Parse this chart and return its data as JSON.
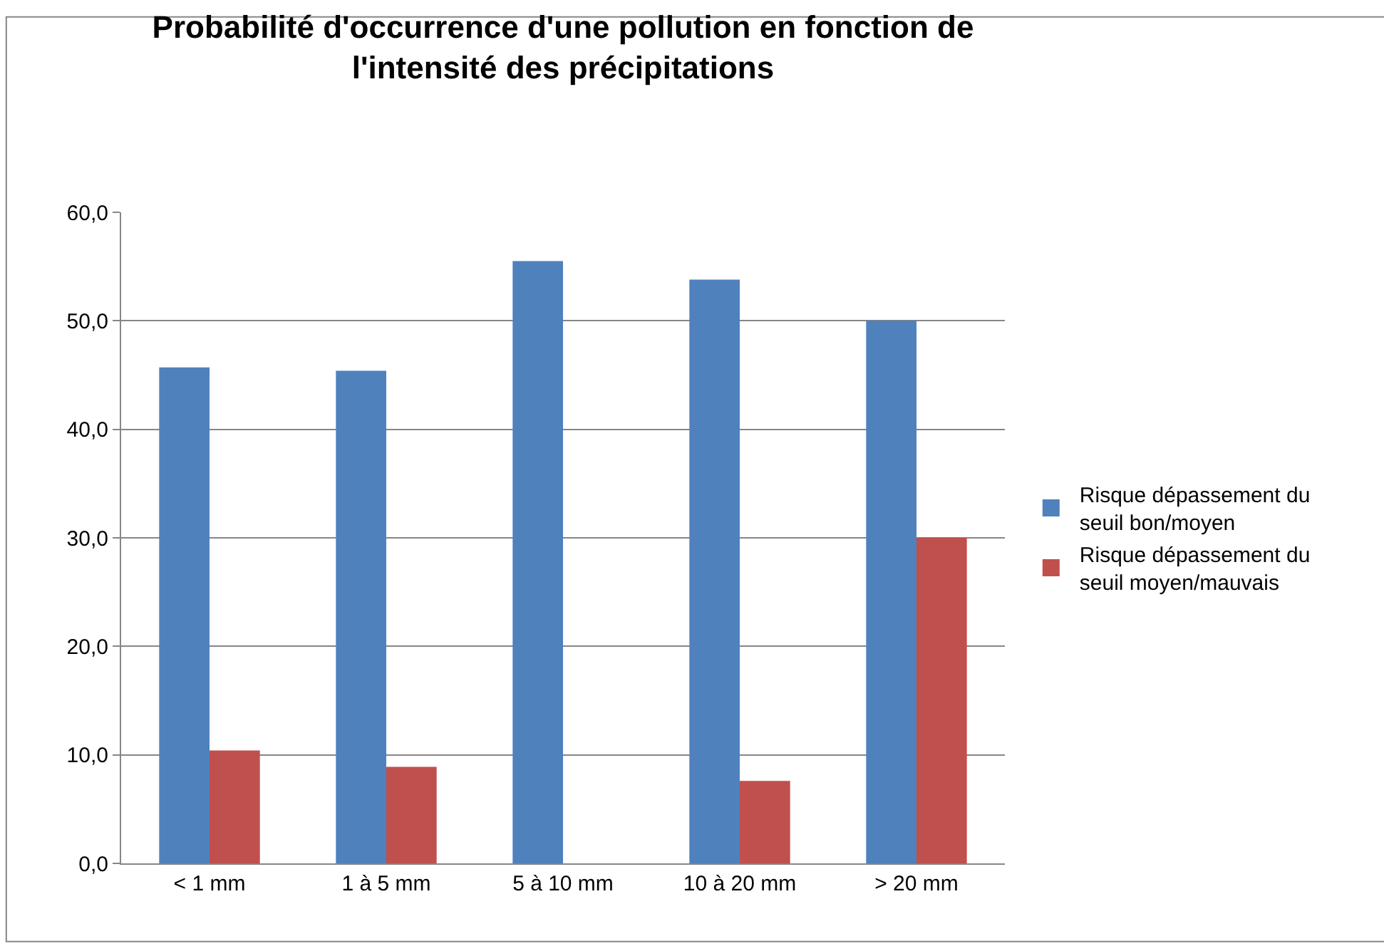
{
  "chart_data": {
    "type": "bar",
    "title": "Probabilité d'occurrence d'une pollution en fonction de l'intensité des précipitations",
    "categories": [
      "< 1 mm",
      "1 à 5 mm",
      "5 à 10 mm",
      "10 à 20 mm",
      "> 20 mm"
    ],
    "series": [
      {
        "name": "Risque dépassement du seuil bon/moyen",
        "color": "#4f81bd",
        "values": [
          45.7,
          45.4,
          55.5,
          53.8,
          50.0
        ]
      },
      {
        "name": "Risque dépassement du seuil moyen/mauvais",
        "color": "#c0504d",
        "values": [
          10.4,
          8.9,
          null,
          7.6,
          30.0
        ]
      }
    ],
    "ylim": [
      0,
      60
    ],
    "yticks": [
      {
        "value": 0,
        "label": "0,0"
      },
      {
        "value": 10,
        "label": "10,0"
      },
      {
        "value": 20,
        "label": "20,0"
      },
      {
        "value": 30,
        "label": "30,0"
      },
      {
        "value": 40,
        "label": "40,0"
      },
      {
        "value": 50,
        "label": "50,0"
      },
      {
        "value": 60,
        "label": "60,0"
      }
    ],
    "grid": "y",
    "legend": "right"
  }
}
